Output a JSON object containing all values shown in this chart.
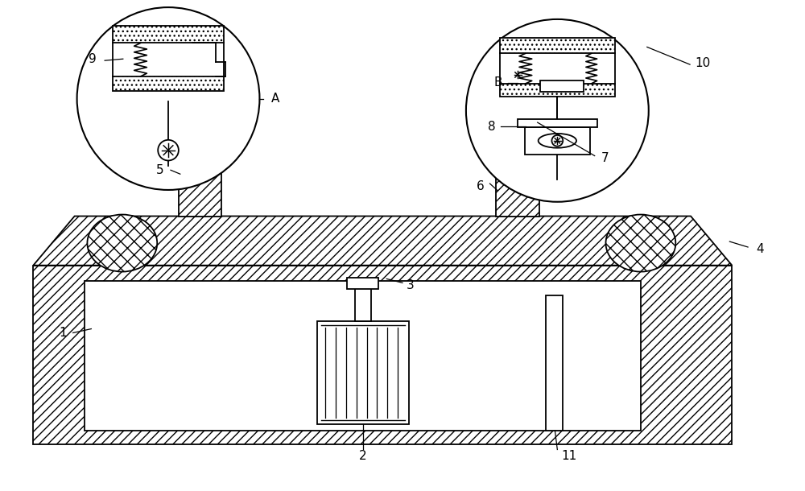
{
  "figsize": [
    10.0,
    6.1
  ],
  "dpi": 100,
  "bg_color": "#ffffff",
  "lc": "#000000",
  "lw": 1.3
}
